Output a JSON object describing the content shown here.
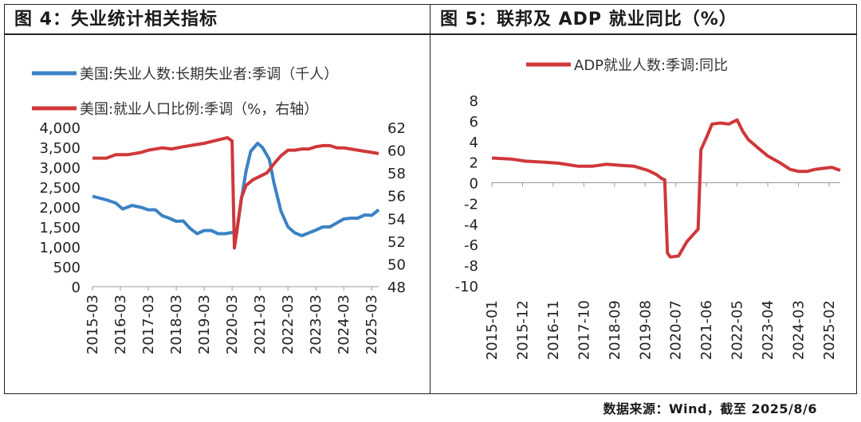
{
  "figures": {
    "left_title": "图 4：失业统计相关指标",
    "right_title": "图 5：联邦及 ADP 就业同比（%）"
  },
  "source": "数据来源：Wind，截至 2025/8/6",
  "chart_data": [
    {
      "type": "line",
      "title": "图 4：失业统计相关指标",
      "x_ticks": [
        "2015-03",
        "2016-03",
        "2017-03",
        "2018-03",
        "2019-03",
        "2020-03",
        "2021-03",
        "2022-03",
        "2023-03",
        "2024-03",
        "2025-03"
      ],
      "x_range": [
        "2015-03",
        "2025-06"
      ],
      "ylim_left": [
        0,
        4000
      ],
      "yticks_left": [
        "4,000",
        "3,500",
        "3,000",
        "2,500",
        "2,000",
        "1,500",
        "1,000",
        "500",
        "0"
      ],
      "ylim_right": [
        48,
        62
      ],
      "yticks_right": [
        "62",
        "60",
        "58",
        "56",
        "54",
        "52",
        "50",
        "48"
      ],
      "grid": false,
      "legend_position": "top",
      "series": [
        {
          "name": "美国:失业人数:长期失业者:季调（千人）",
          "axis": "left",
          "color": "#3b82c4",
          "points": [
            [
              "2015-03",
              2270
            ],
            [
              "2015-09",
              2180
            ],
            [
              "2016-01",
              2100
            ],
            [
              "2016-04",
              1950
            ],
            [
              "2016-08",
              2040
            ],
            [
              "2016-12",
              1990
            ],
            [
              "2017-03",
              1930
            ],
            [
              "2017-06",
              1930
            ],
            [
              "2017-09",
              1780
            ],
            [
              "2017-12",
              1720
            ],
            [
              "2018-03",
              1640
            ],
            [
              "2018-06",
              1650
            ],
            [
              "2018-09",
              1460
            ],
            [
              "2018-12",
              1330
            ],
            [
              "2019-03",
              1410
            ],
            [
              "2019-06",
              1410
            ],
            [
              "2019-09",
              1330
            ],
            [
              "2019-12",
              1330
            ],
            [
              "2020-03",
              1360
            ],
            [
              "2020-05",
              1400
            ],
            [
              "2020-07",
              2200
            ],
            [
              "2020-09",
              2900
            ],
            [
              "2020-11",
              3400
            ],
            [
              "2021-02",
              3600
            ],
            [
              "2021-04",
              3500
            ],
            [
              "2021-07",
              3200
            ],
            [
              "2021-09",
              2600
            ],
            [
              "2021-12",
              1900
            ],
            [
              "2022-03",
              1500
            ],
            [
              "2022-06",
              1350
            ],
            [
              "2022-09",
              1280
            ],
            [
              "2022-12",
              1350
            ],
            [
              "2023-03",
              1420
            ],
            [
              "2023-06",
              1500
            ],
            [
              "2023-09",
              1500
            ],
            [
              "2023-12",
              1600
            ],
            [
              "2024-03",
              1700
            ],
            [
              "2024-06",
              1720
            ],
            [
              "2024-09",
              1720
            ],
            [
              "2024-12",
              1800
            ],
            [
              "2025-03",
              1790
            ],
            [
              "2025-06",
              1930
            ]
          ]
        },
        {
          "name": "美国:就业人口比例:季调（%，右轴）",
          "axis": "right",
          "color": "#d0373a",
          "points": [
            [
              "2015-03",
              59.3
            ],
            [
              "2015-09",
              59.3
            ],
            [
              "2016-01",
              59.6
            ],
            [
              "2016-06",
              59.6
            ],
            [
              "2016-12",
              59.8
            ],
            [
              "2017-03",
              60.0
            ],
            [
              "2017-09",
              60.2
            ],
            [
              "2018-01",
              60.1
            ],
            [
              "2018-06",
              60.3
            ],
            [
              "2018-12",
              60.5
            ],
            [
              "2019-03",
              60.6
            ],
            [
              "2019-09",
              60.9
            ],
            [
              "2020-01",
              61.1
            ],
            [
              "2020-03",
              60.8
            ],
            [
              "2020-04",
              51.4
            ],
            [
              "2020-05",
              52.8
            ],
            [
              "2020-07",
              55.8
            ],
            [
              "2020-09",
              56.9
            ],
            [
              "2020-12",
              57.4
            ],
            [
              "2021-03",
              57.7
            ],
            [
              "2021-06",
              58.0
            ],
            [
              "2021-09",
              58.8
            ],
            [
              "2021-12",
              59.5
            ],
            [
              "2022-03",
              60.0
            ],
            [
              "2022-06",
              60.0
            ],
            [
              "2022-09",
              60.1
            ],
            [
              "2022-12",
              60.1
            ],
            [
              "2023-03",
              60.3
            ],
            [
              "2023-06",
              60.4
            ],
            [
              "2023-09",
              60.4
            ],
            [
              "2023-12",
              60.2
            ],
            [
              "2024-03",
              60.2
            ],
            [
              "2024-06",
              60.1
            ],
            [
              "2024-09",
              60.0
            ],
            [
              "2024-12",
              59.9
            ],
            [
              "2025-03",
              59.8
            ],
            [
              "2025-06",
              59.7
            ]
          ]
        }
      ]
    },
    {
      "type": "line",
      "title": "图 5：联邦及 ADP 就业同比（%）",
      "x_ticks": [
        "2015-01",
        "2015-12",
        "2016-11",
        "2017-10",
        "2018-09",
        "2019-08",
        "2020-07",
        "2021-06",
        "2022-05",
        "2023-04",
        "2024-03",
        "2025-02"
      ],
      "x_range": [
        "2015-01",
        "2025-06"
      ],
      "ylim": [
        -10,
        8
      ],
      "yticks": [
        "8",
        "6",
        "4",
        "2",
        "0",
        "-2",
        "-4",
        "-6",
        "-8",
        "-10"
      ],
      "grid": false,
      "legend_position": "top",
      "series": [
        {
          "name": "ADP就业人数:季调:同比",
          "color": "#d0373a",
          "points": [
            [
              "2015-01",
              2.4
            ],
            [
              "2015-08",
              2.3
            ],
            [
              "2016-01",
              2.1
            ],
            [
              "2016-08",
              2.0
            ],
            [
              "2017-01",
              1.9
            ],
            [
              "2017-08",
              1.6
            ],
            [
              "2018-01",
              1.6
            ],
            [
              "2018-06",
              1.8
            ],
            [
              "2018-11",
              1.7
            ],
            [
              "2019-04",
              1.6
            ],
            [
              "2019-09",
              1.2
            ],
            [
              "2019-12",
              0.8
            ],
            [
              "2020-02",
              0.4
            ],
            [
              "2020-03",
              0.3
            ],
            [
              "2020-04",
              -6.8
            ],
            [
              "2020-05",
              -7.2
            ],
            [
              "2020-08",
              -7.1
            ],
            [
              "2020-11",
              -5.7
            ],
            [
              "2021-02",
              -4.8
            ],
            [
              "2021-03",
              -4.5
            ],
            [
              "2021-04",
              3.2
            ],
            [
              "2021-06",
              4.4
            ],
            [
              "2021-08",
              5.7
            ],
            [
              "2021-11",
              5.8
            ],
            [
              "2022-02",
              5.7
            ],
            [
              "2022-05",
              6.1
            ],
            [
              "2022-07",
              5.0
            ],
            [
              "2022-09",
              4.2
            ],
            [
              "2022-12",
              3.5
            ],
            [
              "2023-04",
              2.6
            ],
            [
              "2023-08",
              2.0
            ],
            [
              "2023-12",
              1.3
            ],
            [
              "2024-03",
              1.1
            ],
            [
              "2024-06",
              1.1
            ],
            [
              "2024-09",
              1.3
            ],
            [
              "2024-12",
              1.4
            ],
            [
              "2025-03",
              1.5
            ],
            [
              "2025-05",
              1.3
            ],
            [
              "2025-06",
              1.2
            ]
          ]
        }
      ]
    }
  ]
}
